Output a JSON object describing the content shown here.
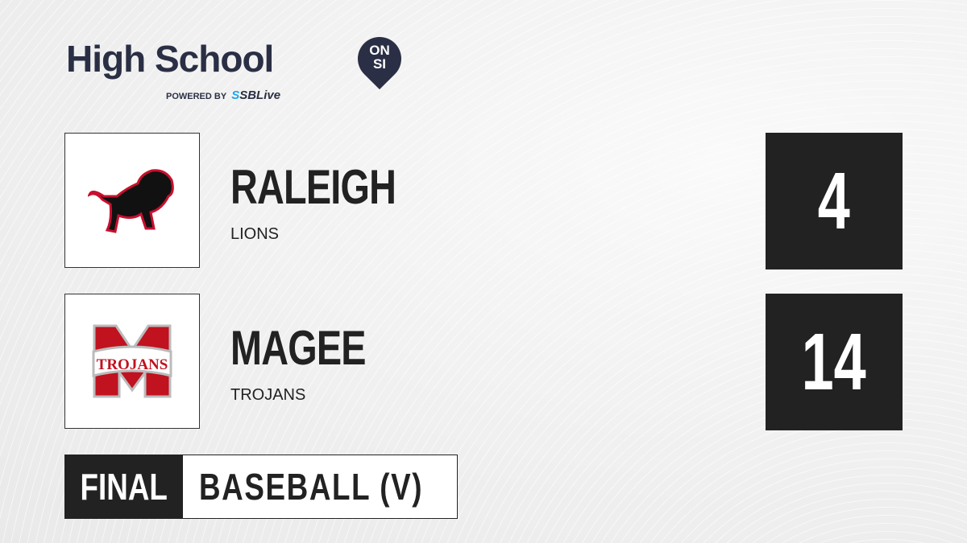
{
  "brand": {
    "title": "High School",
    "badge_top": "ON",
    "badge_bottom": "SI",
    "powered_by": "POWERED BY",
    "partner": "SBLive",
    "accent": "#2b2f45",
    "partner_color": "#1ea7e8"
  },
  "teams": [
    {
      "name": "RALEIGH",
      "mascot": "LIONS",
      "score": "4",
      "logo_icon": "lion-icon"
    },
    {
      "name": "MAGEE",
      "mascot": "TROJANS",
      "score": "14",
      "logo_icon": "trojans-m-icon",
      "logo_text": "TROJANS"
    }
  ],
  "game": {
    "status": "FINAL",
    "sport": "BASEBALL (V)"
  }
}
